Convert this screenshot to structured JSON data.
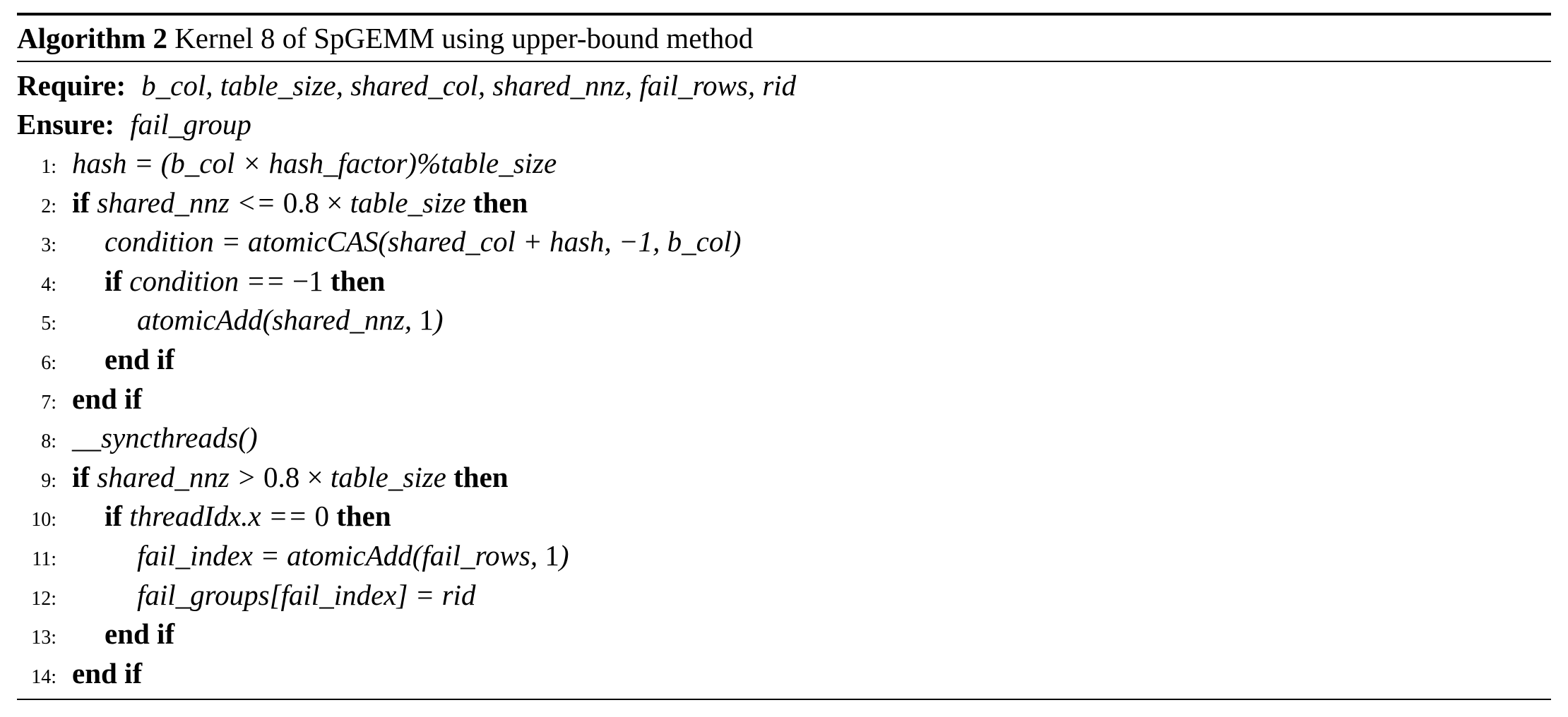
{
  "algorithm": {
    "label": "Algorithm 2",
    "title": "Kernel 8 of SpGEMM using upper-bound method",
    "require_kw": "Require:",
    "require_text": "b_col, table_size, shared_col, shared_nnz, fail_rows, rid",
    "ensure_kw": "Ensure:",
    "ensure_text": "fail_group",
    "lines": [
      {
        "num": "1:",
        "segments": [
          {
            "t": "hash = (b_col × hash_factor)%table_size",
            "s": "m"
          }
        ]
      },
      {
        "num": "2:",
        "segments": [
          {
            "t": "if",
            "s": "kw"
          },
          {
            "t": " shared_nnz <= ",
            "s": "m"
          },
          {
            "t": "0.8 × ",
            "s": ""
          },
          {
            "t": "table_size",
            "s": "m"
          },
          {
            "t": " then",
            "s": "kw"
          }
        ]
      },
      {
        "num": "3:",
        "segments": [
          {
            "t": "condition = atomicCAS(shared_col + hash, −1, b_col)",
            "s": "m"
          }
        ]
      },
      {
        "num": "4:",
        "segments": [
          {
            "t": "if",
            "s": "kw"
          },
          {
            "t": " condition == ",
            "s": "m"
          },
          {
            "t": "−1",
            "s": ""
          },
          {
            "t": " then",
            "s": "kw"
          }
        ]
      },
      {
        "num": "5:",
        "segments": [
          {
            "t": "atomicAdd(shared_nnz, ",
            "s": "m"
          },
          {
            "t": "1",
            "s": ""
          },
          {
            "t": ")",
            "s": "m"
          }
        ]
      },
      {
        "num": "6:",
        "segments": [
          {
            "t": "end if",
            "s": "kw"
          }
        ]
      },
      {
        "num": "7:",
        "segments": [
          {
            "t": "end if",
            "s": "kw"
          }
        ]
      },
      {
        "num": "8:",
        "segments": [
          {
            "t": "__syncthreads()",
            "s": "m"
          }
        ]
      },
      {
        "num": "9:",
        "segments": [
          {
            "t": "if",
            "s": "kw"
          },
          {
            "t": " shared_nnz > ",
            "s": "m"
          },
          {
            "t": "0.8 × ",
            "s": ""
          },
          {
            "t": "table_size",
            "s": "m"
          },
          {
            "t": " then",
            "s": "kw"
          }
        ]
      },
      {
        "num": "10:",
        "segments": [
          {
            "t": "if",
            "s": "kw"
          },
          {
            "t": " threadIdx.x == ",
            "s": "m"
          },
          {
            "t": "0",
            "s": ""
          },
          {
            "t": " then",
            "s": "kw"
          }
        ]
      },
      {
        "num": "11:",
        "segments": [
          {
            "t": "fail_index = atomicAdd(fail_rows, ",
            "s": "m"
          },
          {
            "t": "1",
            "s": ""
          },
          {
            "t": ")",
            "s": "m"
          }
        ]
      },
      {
        "num": "12:",
        "segments": [
          {
            "t": "fail_groups[fail_index] = rid",
            "s": "m"
          }
        ]
      },
      {
        "num": "13:",
        "segments": [
          {
            "t": "end if",
            "s": "kw"
          }
        ]
      },
      {
        "num": "14:",
        "segments": [
          {
            "t": "end if",
            "s": "kw"
          }
        ]
      }
    ]
  }
}
